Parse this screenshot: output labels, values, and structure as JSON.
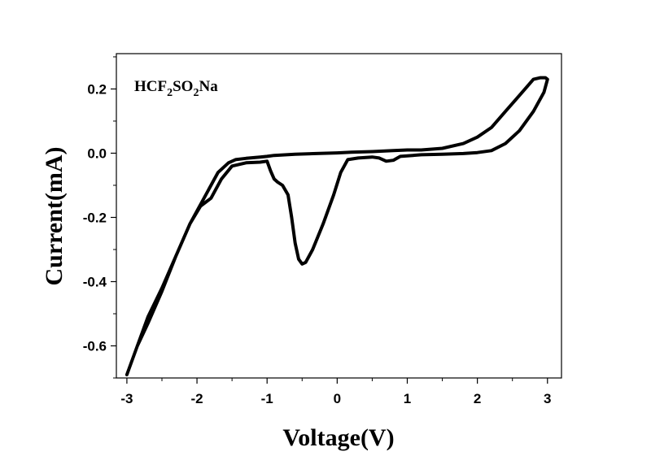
{
  "chart_data": {
    "type": "line",
    "title": "",
    "xlabel": "Voltage(V)",
    "ylabel": "Current(mA)",
    "xlim": [
      -3.15,
      3.2
    ],
    "ylim": [
      -0.7,
      0.31
    ],
    "xticks": [
      {
        "value": -3,
        "label": "-3"
      },
      {
        "value": -2,
        "label": "-2"
      },
      {
        "value": -1,
        "label": "-1"
      },
      {
        "value": 0,
        "label": "0"
      },
      {
        "value": 1,
        "label": "1"
      },
      {
        "value": 2,
        "label": "2"
      },
      {
        "value": 3,
        "label": "3"
      }
    ],
    "yticks": [
      {
        "value": 0.2,
        "label": "0.2"
      },
      {
        "value": 0.0,
        "label": "0.0"
      },
      {
        "value": -0.2,
        "label": "-0.2"
      },
      {
        "value": -0.4,
        "label": "-0.4"
      },
      {
        "value": -0.6,
        "label": "-0.6"
      }
    ],
    "annotation": {
      "base": "HCF",
      "sub1": "2",
      "mid": "SO",
      "sub2": "2",
      "tail": "Na"
    },
    "grid": false,
    "legend": "none",
    "color": "#000000",
    "series": [
      {
        "x": [
          -3.0,
          -2.85,
          -2.7,
          -2.5,
          -2.3,
          -2.1,
          -1.95,
          -1.8,
          -1.65,
          -1.5,
          -1.3,
          -1.1,
          -1.0,
          -0.95,
          -0.9,
          -0.85,
          -0.78,
          -0.7,
          -0.65,
          -0.6,
          -0.55,
          -0.5,
          -0.45,
          -0.35,
          -0.2,
          -0.05,
          0.05,
          0.15,
          0.3,
          0.5,
          0.6,
          0.7,
          0.8,
          0.9,
          1.2,
          1.5,
          1.8,
          2.0,
          2.2,
          2.4,
          2.6,
          2.8,
          2.95,
          3.0,
          2.97,
          2.9,
          2.8,
          2.6,
          2.4,
          2.2,
          2.0,
          1.8,
          1.5,
          1.2,
          1.0,
          0.8,
          0.5,
          0.2,
          0.0,
          -0.3,
          -0.6,
          -0.9,
          -1.0,
          -1.1,
          -1.3,
          -1.45,
          -1.55,
          -1.7,
          -1.9,
          -2.1,
          -2.3,
          -2.5,
          -2.7,
          -2.85,
          -3.0
        ],
        "y": [
          -0.69,
          -0.6,
          -0.51,
          -0.42,
          -0.32,
          -0.22,
          -0.165,
          -0.14,
          -0.08,
          -0.04,
          -0.03,
          -0.028,
          -0.025,
          -0.055,
          -0.08,
          -0.09,
          -0.1,
          -0.13,
          -0.2,
          -0.28,
          -0.33,
          -0.345,
          -0.34,
          -0.3,
          -0.22,
          -0.13,
          -0.06,
          -0.02,
          -0.015,
          -0.012,
          -0.015,
          -0.025,
          -0.022,
          -0.01,
          -0.005,
          -0.003,
          -0.001,
          0.002,
          0.008,
          0.03,
          0.07,
          0.13,
          0.19,
          0.23,
          0.235,
          0.235,
          0.23,
          0.18,
          0.13,
          0.08,
          0.05,
          0.03,
          0.015,
          0.01,
          0.01,
          0.008,
          0.005,
          0.003,
          0.001,
          -0.001,
          -0.003,
          -0.007,
          -0.01,
          -0.012,
          -0.016,
          -0.02,
          -0.03,
          -0.06,
          -0.14,
          -0.22,
          -0.32,
          -0.43,
          -0.53,
          -0.6,
          -0.69
        ]
      }
    ]
  }
}
